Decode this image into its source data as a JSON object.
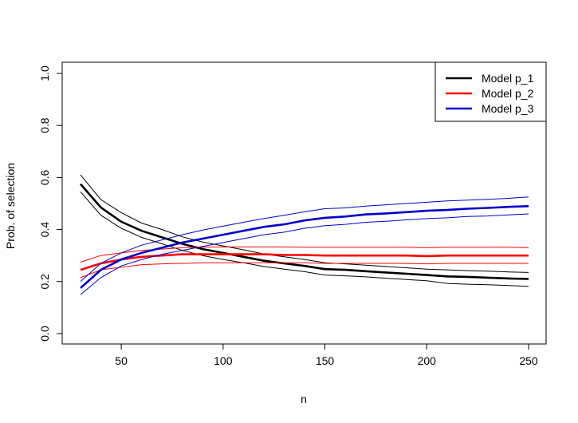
{
  "chart_data": {
    "type": "line",
    "title": "",
    "xlabel": "n",
    "ylabel": "Prob. of selection",
    "xlim": [
      30,
      250
    ],
    "ylim": [
      0.0,
      1.0
    ],
    "x_ticks": [
      50,
      100,
      150,
      200,
      250
    ],
    "y_ticks": [
      0.0,
      0.2,
      0.4,
      0.6,
      0.8,
      1.0
    ],
    "x_tick_labels": [
      "50",
      "100",
      "150",
      "200",
      "250"
    ],
    "y_tick_labels": [
      "0.0",
      "0.2",
      "0.4",
      "0.6",
      "0.8",
      "1.0"
    ],
    "grid": false,
    "legend_position": "top-right",
    "x": [
      30,
      40,
      50,
      60,
      70,
      80,
      90,
      100,
      110,
      120,
      130,
      140,
      150,
      160,
      170,
      180,
      190,
      200,
      210,
      220,
      230,
      240,
      250
    ],
    "series": [
      {
        "name": "Model p_1",
        "color": "#000000",
        "values": [
          0.575,
          0.485,
          0.43,
          0.395,
          0.37,
          0.345,
          0.325,
          0.31,
          0.295,
          0.28,
          0.27,
          0.26,
          0.248,
          0.245,
          0.24,
          0.235,
          0.23,
          0.225,
          0.22,
          0.218,
          0.215,
          0.212,
          0.21
        ],
        "lower": [
          0.545,
          0.455,
          0.405,
          0.37,
          0.345,
          0.32,
          0.3,
          0.285,
          0.272,
          0.258,
          0.248,
          0.238,
          0.225,
          0.222,
          0.218,
          0.213,
          0.208,
          0.203,
          0.193,
          0.19,
          0.188,
          0.185,
          0.182
        ],
        "upper": [
          0.61,
          0.515,
          0.465,
          0.425,
          0.4,
          0.372,
          0.352,
          0.337,
          0.322,
          0.306,
          0.295,
          0.285,
          0.272,
          0.268,
          0.263,
          0.258,
          0.253,
          0.248,
          0.245,
          0.242,
          0.24,
          0.237,
          0.235
        ]
      },
      {
        "name": "Model p_2",
        "color": "#ff0000",
        "values": [
          0.245,
          0.27,
          0.285,
          0.295,
          0.3,
          0.305,
          0.305,
          0.305,
          0.305,
          0.305,
          0.302,
          0.302,
          0.3,
          0.3,
          0.3,
          0.3,
          0.3,
          0.298,
          0.3,
          0.3,
          0.3,
          0.3,
          0.3
        ],
        "lower": [
          0.215,
          0.245,
          0.255,
          0.265,
          0.268,
          0.27,
          0.272,
          0.272,
          0.272,
          0.272,
          0.272,
          0.272,
          0.27,
          0.27,
          0.27,
          0.27,
          0.27,
          0.268,
          0.27,
          0.27,
          0.27,
          0.27,
          0.27
        ],
        "upper": [
          0.275,
          0.3,
          0.31,
          0.32,
          0.325,
          0.33,
          0.332,
          0.333,
          0.333,
          0.333,
          0.333,
          0.332,
          0.332,
          0.332,
          0.332,
          0.332,
          0.332,
          0.33,
          0.332,
          0.332,
          0.332,
          0.332,
          0.33
        ]
      },
      {
        "name": "Model p_3",
        "color": "#0000cd",
        "values": [
          0.175,
          0.245,
          0.285,
          0.31,
          0.33,
          0.35,
          0.365,
          0.38,
          0.395,
          0.41,
          0.42,
          0.435,
          0.445,
          0.45,
          0.458,
          0.462,
          0.467,
          0.472,
          0.475,
          0.48,
          0.483,
          0.487,
          0.49
        ],
        "lower": [
          0.15,
          0.215,
          0.26,
          0.285,
          0.305,
          0.32,
          0.335,
          0.35,
          0.365,
          0.38,
          0.39,
          0.405,
          0.415,
          0.42,
          0.428,
          0.432,
          0.437,
          0.442,
          0.445,
          0.45,
          0.452,
          0.456,
          0.46
        ],
        "upper": [
          0.2,
          0.27,
          0.31,
          0.34,
          0.36,
          0.38,
          0.398,
          0.413,
          0.428,
          0.442,
          0.455,
          0.468,
          0.48,
          0.483,
          0.49,
          0.495,
          0.5,
          0.505,
          0.51,
          0.513,
          0.516,
          0.52,
          0.525
        ]
      }
    ]
  }
}
